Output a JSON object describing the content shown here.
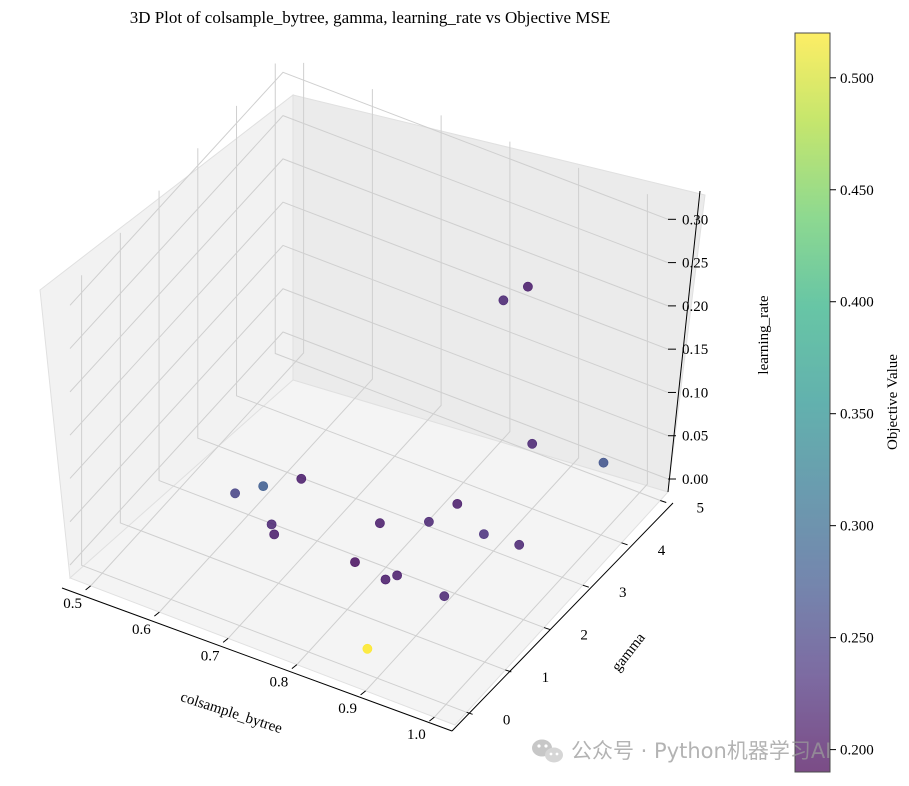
{
  "chart_data": {
    "type": "scatter",
    "title": "3D Plot of colsample_bytree, gamma, learning_rate vs Objective MSE",
    "xlabel": "colsample_bytree",
    "ylabel": "gamma",
    "zlabel": "learning_rate",
    "colorbar_label": "Objective Value",
    "xlim": [
      0.47,
      1.03
    ],
    "ylim": [
      -0.3,
      5.2
    ],
    "zlim": [
      -0.015,
      0.32
    ],
    "x_ticks": [
      "0.5",
      "0.6",
      "0.7",
      "0.8",
      "0.9",
      "1.0"
    ],
    "y_ticks": [
      "0",
      "1",
      "2",
      "3",
      "4",
      "5"
    ],
    "z_ticks": [
      "0.00",
      "0.05",
      "0.10",
      "0.15",
      "0.20",
      "0.25",
      "0.30"
    ],
    "colorbar_ticks": [
      "0.200",
      "0.250",
      "0.300",
      "0.350",
      "0.400",
      "0.450",
      "0.500"
    ],
    "colorbar_range": [
      0.19,
      0.52
    ],
    "colormap": "viridis",
    "grid": true,
    "points": [
      {
        "x": 0.72,
        "y": 0.25,
        "z": 0.14,
        "v": 0.28
      },
      {
        "x": 0.66,
        "y": 1.6,
        "z": 0.0,
        "v": 0.21
      },
      {
        "x": 0.88,
        "y": 0.1,
        "z": 0.008,
        "v": 0.52
      },
      {
        "x": 0.93,
        "y": 1.2,
        "z": 0.03,
        "v": 0.22
      },
      {
        "x": 0.69,
        "y": 1.0,
        "z": 0.05,
        "v": 0.22
      },
      {
        "x": 0.66,
        "y": 2.3,
        "z": 0.03,
        "v": 0.21
      },
      {
        "x": 0.78,
        "y": 2.2,
        "z": 0.02,
        "v": 0.21
      },
      {
        "x": 0.85,
        "y": 1.4,
        "z": 0.02,
        "v": 0.21
      },
      {
        "x": 0.8,
        "y": 1.2,
        "z": 0.03,
        "v": 0.2
      },
      {
        "x": 0.85,
        "y": 1.1,
        "z": 0.03,
        "v": 0.21
      },
      {
        "x": 0.84,
        "y": 2.4,
        "z": 0.03,
        "v": 0.22
      },
      {
        "x": 0.96,
        "y": 2.6,
        "z": 0.03,
        "v": 0.22
      },
      {
        "x": 0.92,
        "y": 2.4,
        "z": 0.04,
        "v": 0.23
      },
      {
        "x": 0.9,
        "y": 4.0,
        "z": 0.06,
        "v": 0.22
      },
      {
        "x": 0.62,
        "y": 1.3,
        "z": 0.05,
        "v": 0.25
      },
      {
        "x": 0.87,
        "y": 2.6,
        "z": 0.05,
        "v": 0.21
      },
      {
        "x": 0.97,
        "y": 4.6,
        "z": 0.03,
        "v": 0.27
      },
      {
        "x": 0.83,
        "y": 4.5,
        "z": 0.18,
        "v": 0.22
      },
      {
        "x": 0.86,
        "y": 4.6,
        "z": 0.2,
        "v": 0.21
      }
    ]
  },
  "watermark": {
    "icon": "wechat-icon",
    "text": "公众号 · Python机器学习AI"
  }
}
